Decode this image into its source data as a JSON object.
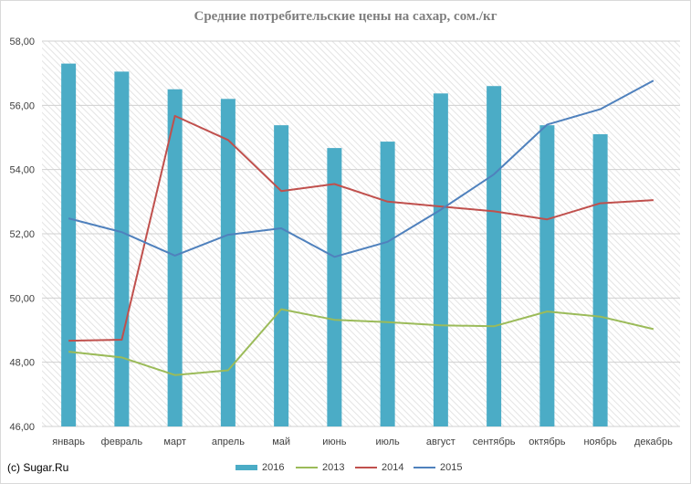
{
  "chart_data": {
    "type": "bar",
    "title": "Средние потребительские цены на сахар, сом./кг",
    "categories": [
      "январь",
      "февраль",
      "март",
      "апрель",
      "май",
      "июнь",
      "июль",
      "август",
      "сентябрь",
      "октябрь",
      "ноябрь",
      "декабрь"
    ],
    "ylim": [
      46,
      58
    ],
    "yticks": [
      "46,00",
      "48,00",
      "50,00",
      "52,00",
      "54,00",
      "56,00",
      "58,00"
    ],
    "ytick_values": [
      46,
      48,
      50,
      52,
      54,
      56,
      58
    ],
    "grid": true,
    "legend_position": "bottom",
    "bar_series": {
      "name": "2016",
      "color": "#4bacc6",
      "values": [
        57.3,
        57.05,
        56.5,
        56.2,
        55.38,
        54.67,
        54.87,
        56.37,
        56.6,
        55.38,
        55.1,
        null
      ]
    },
    "line_series": [
      {
        "name": "2013",
        "color": "#9bbb59",
        "values": [
          48.33,
          48.15,
          47.6,
          47.75,
          49.65,
          49.32,
          49.25,
          49.15,
          49.12,
          49.58,
          49.42,
          49.03
        ]
      },
      {
        "name": "2014",
        "color": "#c0504d",
        "values": [
          48.67,
          48.7,
          55.67,
          54.92,
          53.33,
          53.55,
          53.0,
          52.85,
          52.7,
          52.45,
          52.95,
          53.05
        ]
      },
      {
        "name": "2015",
        "color": "#4f81bd",
        "values": [
          52.48,
          52.05,
          51.32,
          51.97,
          52.17,
          51.28,
          51.75,
          52.75,
          53.85,
          55.4,
          55.88,
          56.77
        ]
      }
    ]
  },
  "credit": "(c) Sugar.Ru",
  "legend": [
    {
      "label": "2016",
      "color": "#4bacc6",
      "kind": "bar"
    },
    {
      "label": "2013",
      "color": "#9bbb59",
      "kind": "line"
    },
    {
      "label": "2014",
      "color": "#c0504d",
      "kind": "line"
    },
    {
      "label": "2015",
      "color": "#4f81bd",
      "kind": "line"
    }
  ]
}
